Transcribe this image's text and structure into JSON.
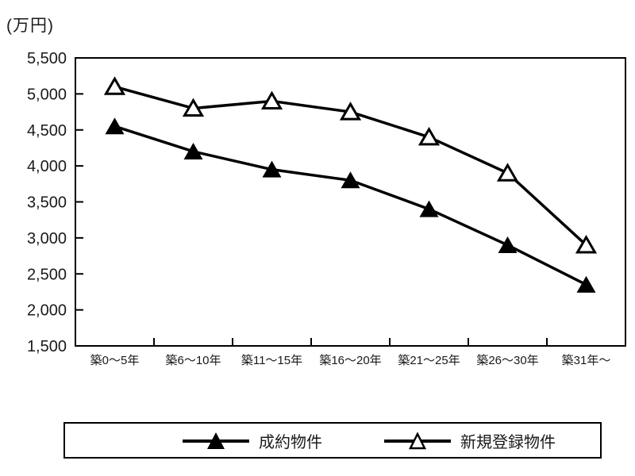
{
  "page": {
    "background": "#ffffff",
    "foreground": "#000000"
  },
  "chart_data": {
    "type": "line",
    "title": "",
    "xlabel": "",
    "ylabel": "(万円)",
    "unit_label": "(万円)",
    "categories": [
      "築0〜5年",
      "築6〜10年",
      "築11〜15年",
      "築16〜20年",
      "築21〜25年",
      "築26〜30年",
      "築31年〜"
    ],
    "series": [
      {
        "name": "成約物件",
        "marker": "filled-triangle",
        "color": "#000000",
        "values": [
          4550,
          4200,
          3950,
          3800,
          3400,
          2900,
          2350
        ]
      },
      {
        "name": "新規登録物件",
        "marker": "open-triangle",
        "color": "#000000",
        "values": [
          5100,
          4800,
          4900,
          4750,
          4400,
          3900,
          2900
        ]
      }
    ],
    "ylim": [
      1500,
      5500
    ],
    "y_tick_step": 500,
    "y_tick_labels": [
      "5,500",
      "5,000",
      "4,500",
      "4,000",
      "3,500",
      "3,000",
      "2,500",
      "2,000",
      "1,500"
    ],
    "grid": false,
    "legend_position": "bottom"
  }
}
